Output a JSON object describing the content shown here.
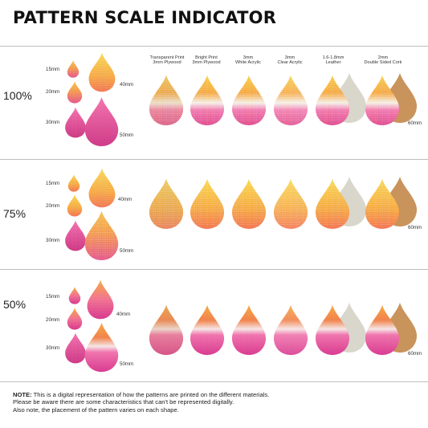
{
  "title": "PATTERN SCALE INDICATOR",
  "materials": [
    {
      "line1": "Transparent Print",
      "line2": "3mm Plywood"
    },
    {
      "line1": "Bright Print",
      "line2": "3mm Plywood"
    },
    {
      "line1": "3mm",
      "line2": "White Acrylic"
    },
    {
      "line1": "3mm",
      "line2": "Clear Acrylic"
    },
    {
      "line1": "1.6-1.8mm",
      "line2": "Leather"
    },
    {
      "line1": "2mm",
      "line2": "Double Sided Cork"
    }
  ],
  "sections": [
    {
      "scale": "100%",
      "sizes": [
        "15mm",
        "20mm",
        "30mm",
        "40mm",
        "50mm"
      ],
      "row_size": "60mm"
    },
    {
      "scale": "75%",
      "sizes": [
        "15mm",
        "20mm",
        "30mm",
        "40mm",
        "50mm"
      ],
      "row_size": "60mm"
    },
    {
      "scale": "50%",
      "sizes": [
        "15mm",
        "20mm",
        "30mm",
        "40mm",
        "50mm"
      ],
      "row_size": "60mm"
    }
  ],
  "note": {
    "label": "NOTE:",
    "line1": "This is a digital representation of how the patterns are printed on the different materials.",
    "line2": "Please be aware there are some characteristics that can't be represented digitally.",
    "line3": "Also note, the placement of the pattern varies on each shape."
  },
  "colors": {
    "pink": "#e8358d",
    "orange": "#f39a2b",
    "yellow": "#f5c531",
    "wood": "#c99a62",
    "leather": "#d9d6cc",
    "cork": "#c9935c"
  }
}
